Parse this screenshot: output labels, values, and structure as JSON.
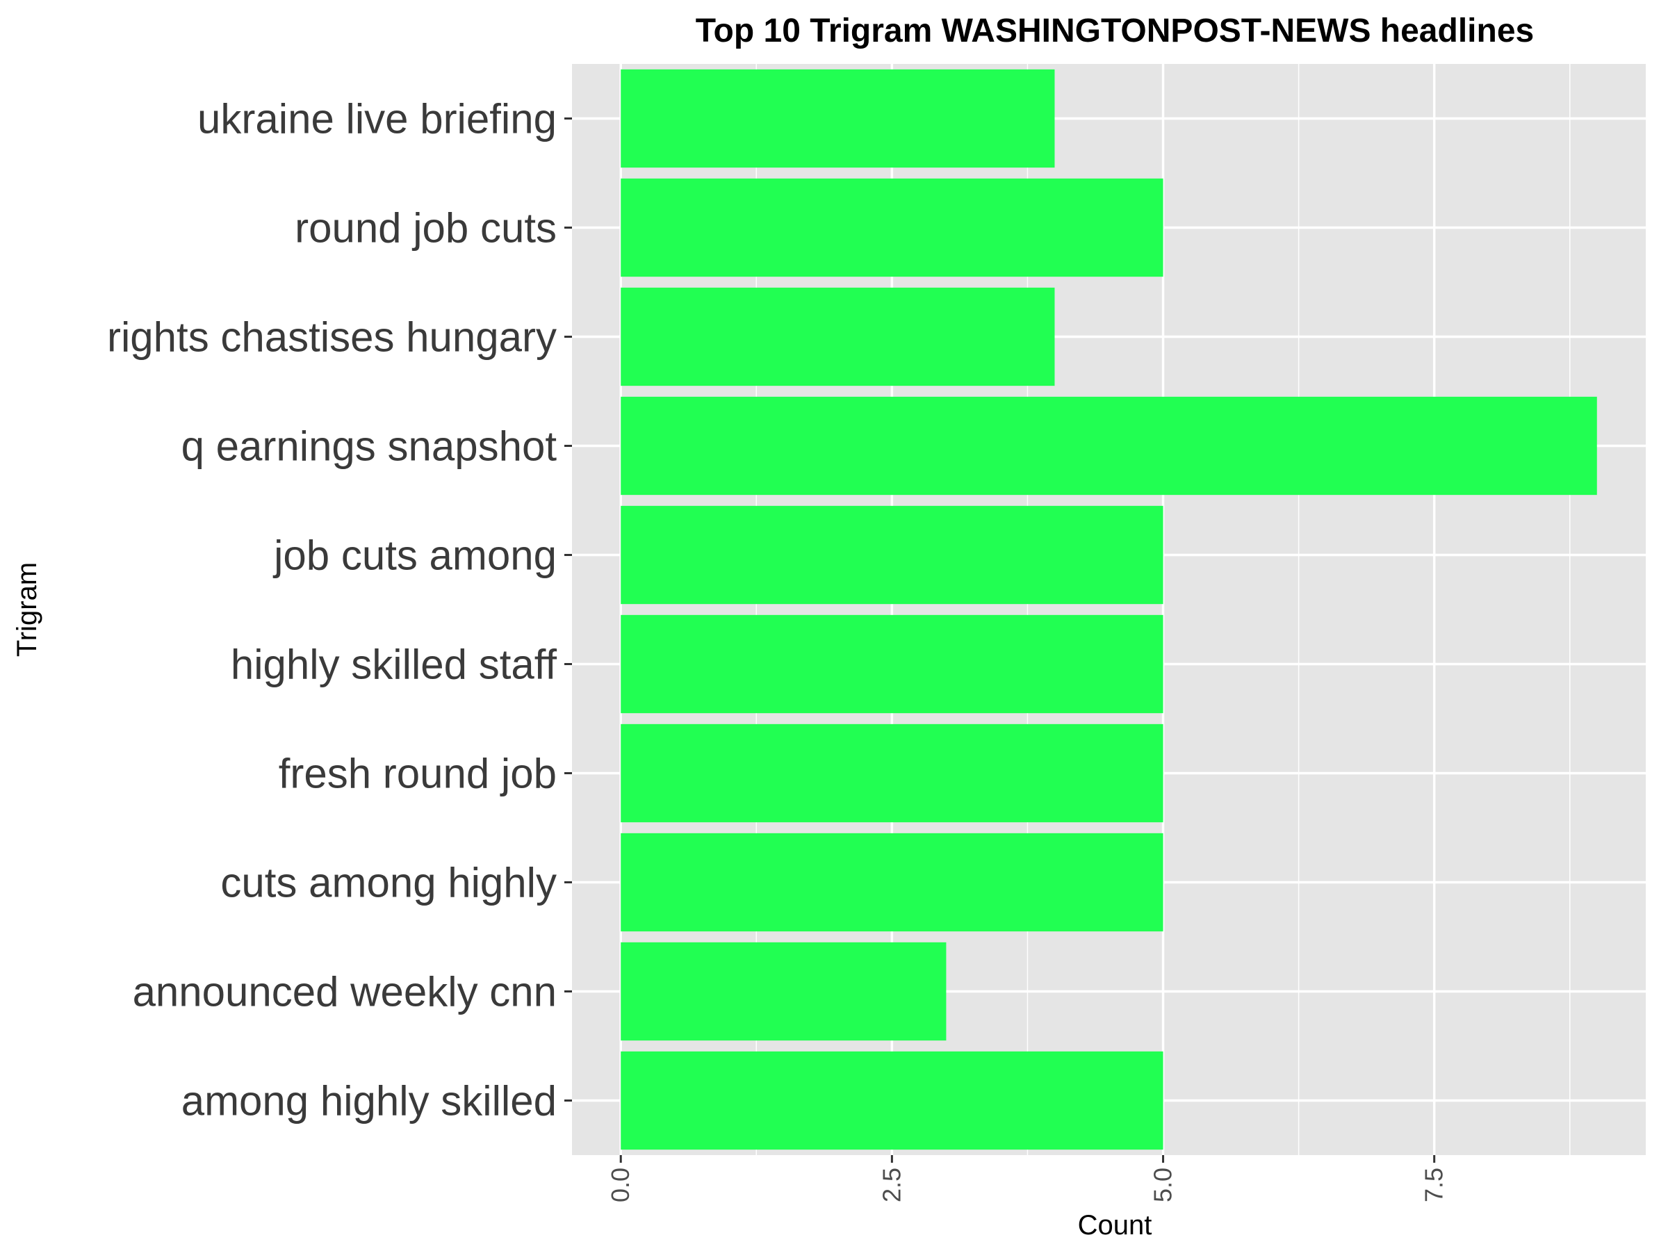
{
  "chart_data": {
    "type": "bar",
    "orientation": "horizontal",
    "title": "Top 10 Trigram WASHINGTONPOST-NEWS headlines",
    "xlabel": "Count",
    "ylabel": "Trigram",
    "categories": [
      "ukraine live briefing",
      "round job cuts",
      "rights chastises hungary",
      "q earnings snapshot",
      "job cuts among",
      "highly skilled staff",
      "fresh round job",
      "cuts among highly",
      "announced weekly cnn",
      "among highly skilled"
    ],
    "values": [
      4,
      5,
      4,
      9,
      5,
      5,
      5,
      5,
      3,
      5
    ],
    "xlim": [
      -0.45,
      9.45
    ],
    "xticks": [
      "0.0",
      "2.5",
      "5.0",
      "7.5"
    ],
    "xtick_values": [
      0,
      2.5,
      5,
      7.5
    ],
    "grid": true,
    "bar_color": "#21FF52",
    "panel_color": "#E5E5E5"
  }
}
